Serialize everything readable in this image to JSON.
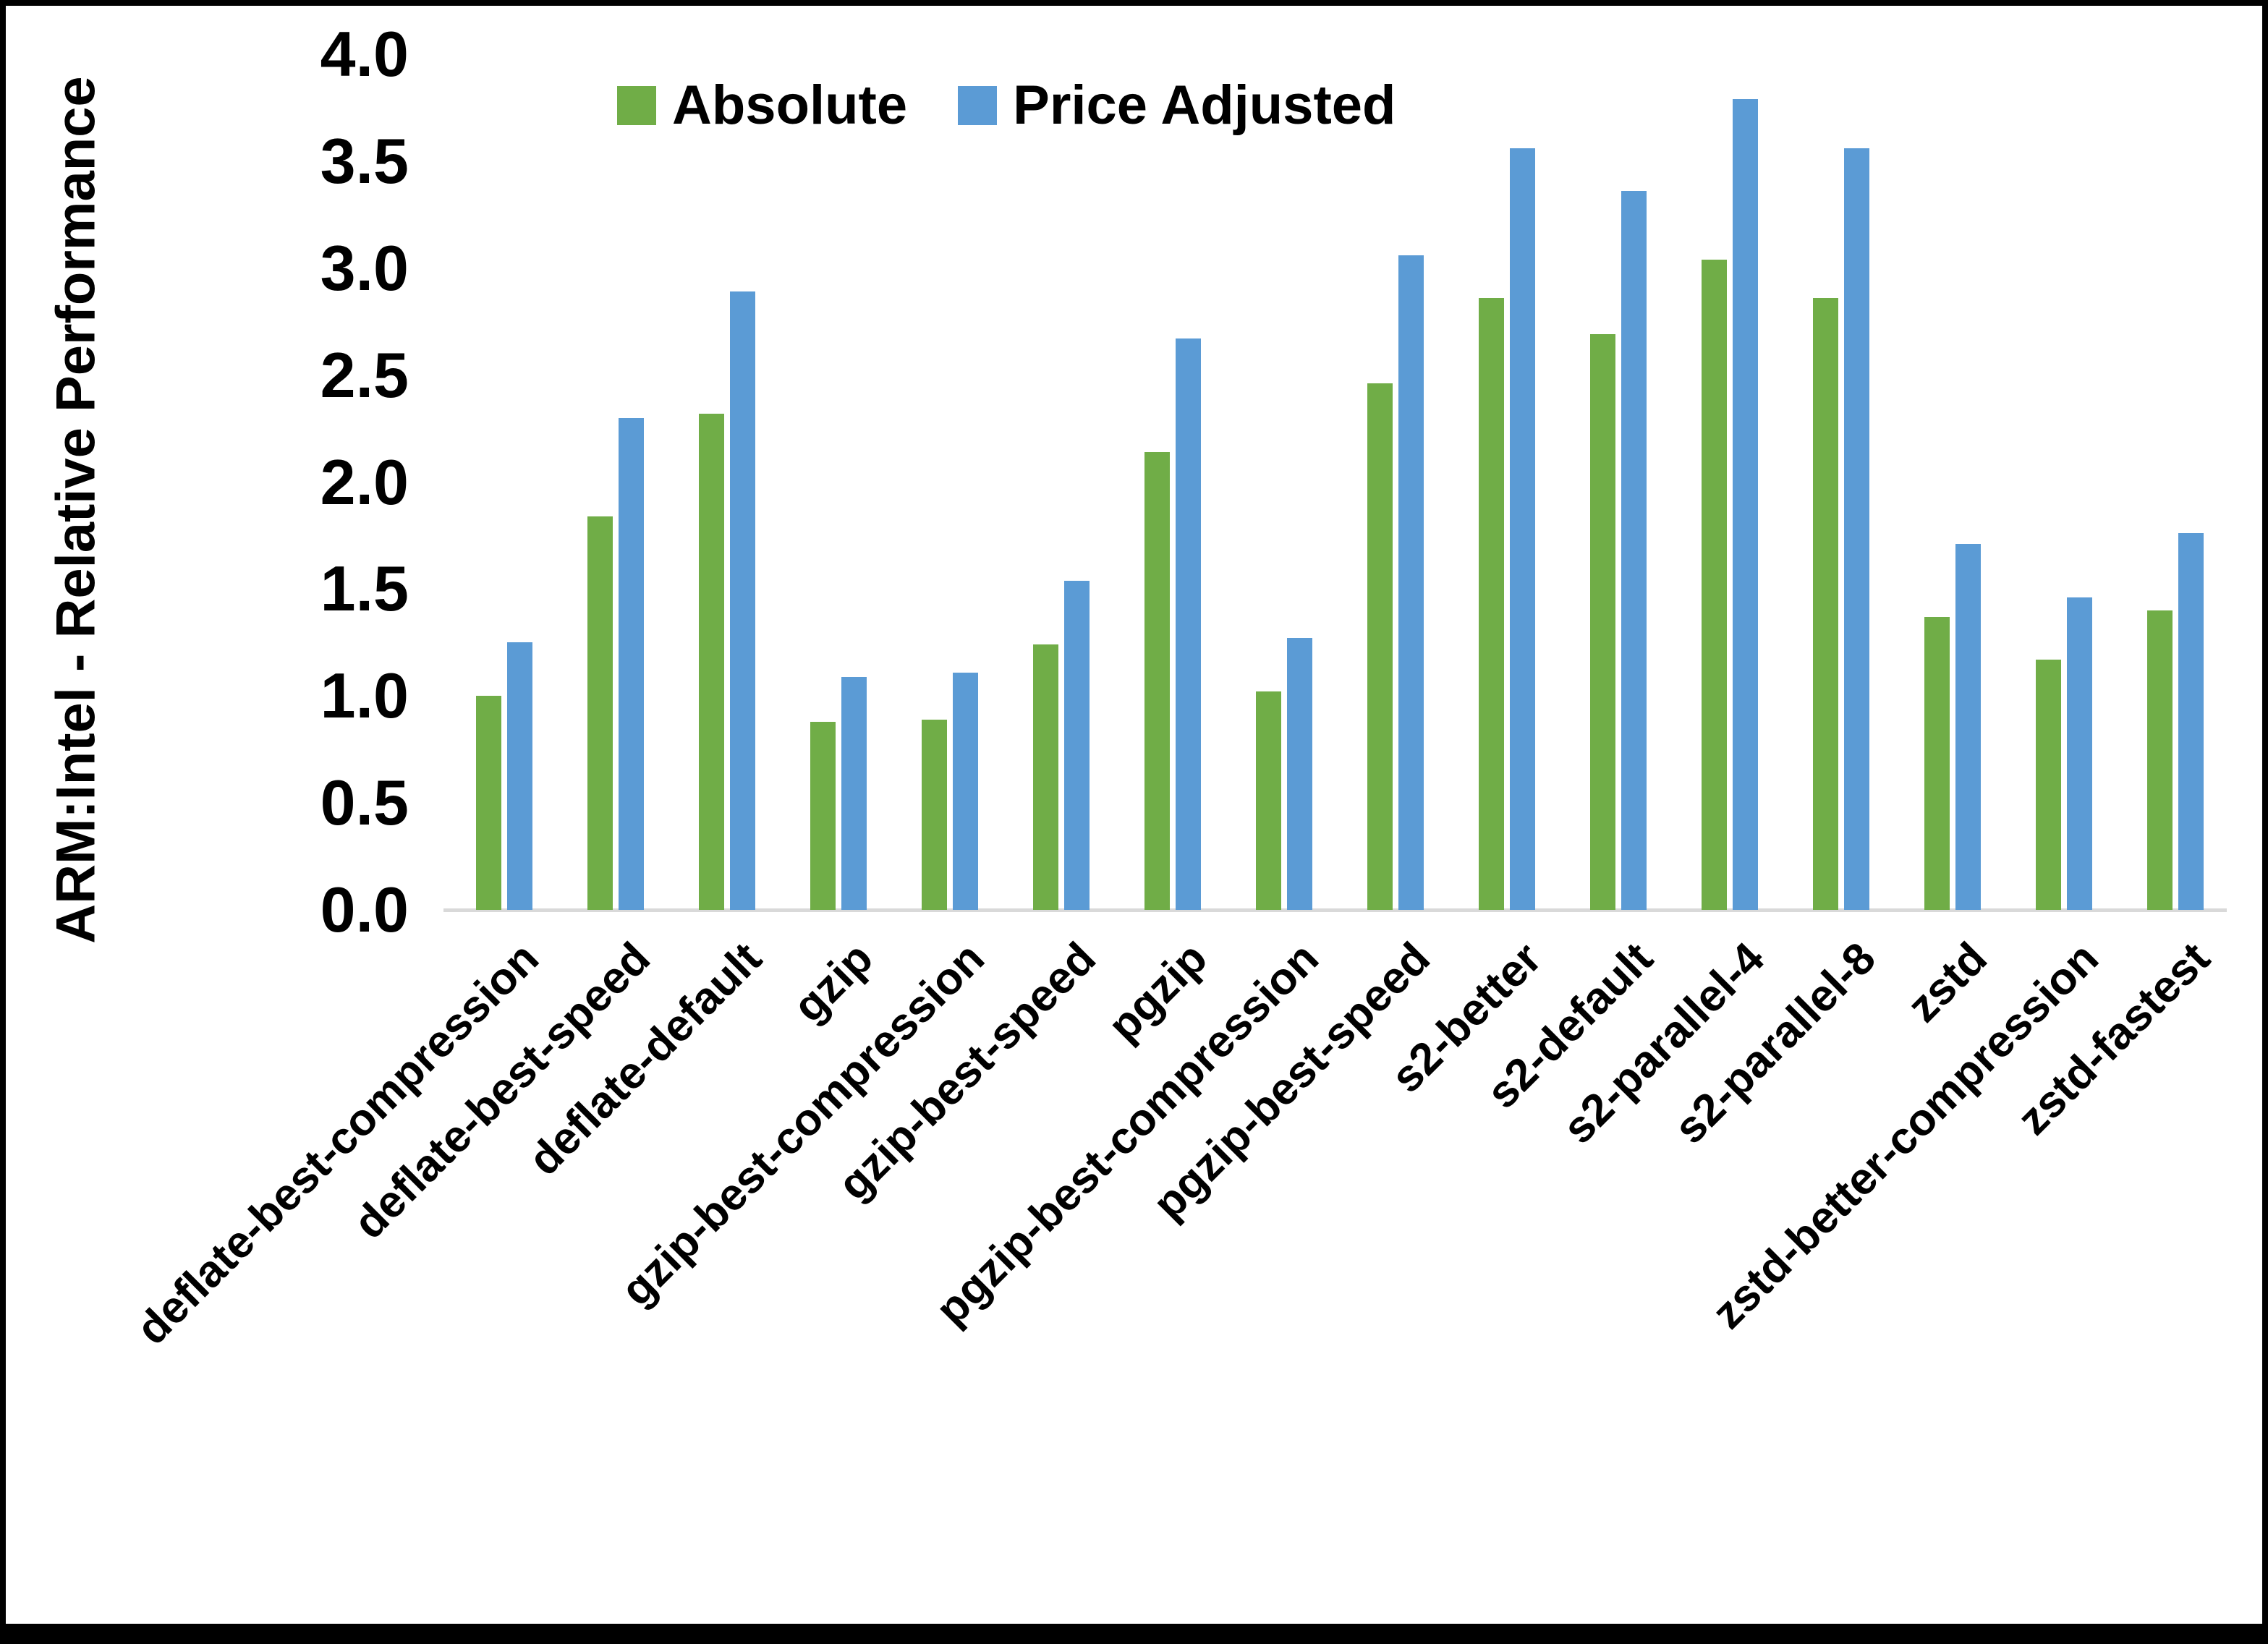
{
  "y_axis": {
    "title": "ARM:Intel - Relative Performance",
    "ticks": [
      "0.0",
      "0.5",
      "1.0",
      "1.5",
      "2.0",
      "2.5",
      "3.0",
      "3.5",
      "4.0"
    ]
  },
  "legend": [
    {
      "label": "Absolute",
      "color": "#70AD47"
    },
    {
      "label": "Price Adjusted",
      "color": "#5B9BD5"
    }
  ],
  "chart_data": {
    "type": "bar",
    "title": "",
    "xlabel": "",
    "ylabel": "ARM:Intel - Relative Performance",
    "ylim": [
      0,
      4
    ],
    "ytick_step": 0.5,
    "grid": false,
    "legend_position": "top-center",
    "categories": [
      "deflate-best-compression",
      "deflate-best-speed",
      "deflate-default",
      "gzip",
      "gzip-best-compression",
      "gzip-best-speed",
      "pgzip",
      "pgzip-best-compression",
      "pgzip-best-speed",
      "s2-better",
      "s2-default",
      "s2-parallel-4",
      "s2-parallel-8",
      "zstd",
      "zstd-better-compression",
      "zstd-fastest"
    ],
    "series": [
      {
        "name": "Absolute",
        "color": "#70AD47",
        "values": [
          1.0,
          1.84,
          2.32,
          0.88,
          0.89,
          1.24,
          2.14,
          1.02,
          2.46,
          2.86,
          2.69,
          3.04,
          2.86,
          1.37,
          1.17,
          1.4
        ]
      },
      {
        "name": "Price Adjusted",
        "color": "#5B9BD5",
        "values": [
          1.25,
          2.3,
          2.89,
          1.09,
          1.11,
          1.54,
          2.67,
          1.27,
          3.06,
          3.56,
          3.36,
          3.79,
          3.56,
          1.71,
          1.46,
          1.76
        ]
      }
    ]
  }
}
